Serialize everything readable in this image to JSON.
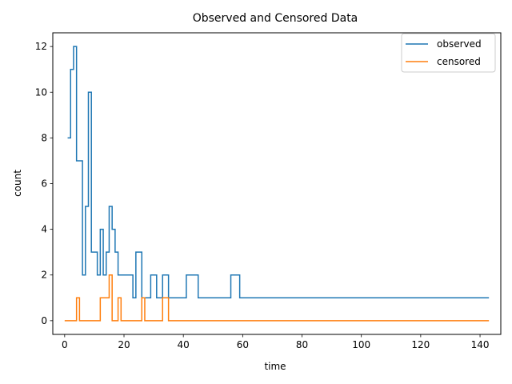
{
  "chart_data": {
    "type": "line",
    "step": "post",
    "title": "Observed and Censored Data",
    "xlabel": "time",
    "ylabel": "count",
    "xlim": [
      -4,
      147
    ],
    "ylim": [
      -0.6,
      12.6
    ],
    "xticks": [
      0,
      20,
      40,
      60,
      80,
      100,
      120,
      140
    ],
    "yticks": [
      0,
      2,
      4,
      6,
      8,
      10,
      12
    ],
    "grid": false,
    "legend_position": "top-right",
    "series": [
      {
        "name": "observed",
        "color": "#1f77b4",
        "points": [
          [
            1,
            8
          ],
          [
            2,
            11
          ],
          [
            3,
            12
          ],
          [
            4,
            7
          ],
          [
            5,
            7
          ],
          [
            6,
            2
          ],
          [
            7,
            5
          ],
          [
            8,
            10
          ],
          [
            9,
            3
          ],
          [
            10,
            3
          ],
          [
            11,
            2
          ],
          [
            12,
            4
          ],
          [
            13,
            2
          ],
          [
            14,
            3
          ],
          [
            15,
            5
          ],
          [
            16,
            4
          ],
          [
            17,
            3
          ],
          [
            18,
            2
          ],
          [
            19,
            2
          ],
          [
            20,
            2
          ],
          [
            21,
            2
          ],
          [
            22,
            2
          ],
          [
            23,
            1
          ],
          [
            24,
            3
          ],
          [
            25,
            3
          ],
          [
            26,
            1
          ],
          [
            27,
            1
          ],
          [
            28,
            1
          ],
          [
            29,
            2
          ],
          [
            30,
            2
          ],
          [
            31,
            1
          ],
          [
            32,
            1
          ],
          [
            33,
            2
          ],
          [
            34,
            2
          ],
          [
            35,
            1
          ],
          [
            36,
            1
          ],
          [
            37,
            1
          ],
          [
            38,
            1
          ],
          [
            39,
            1
          ],
          [
            40,
            1
          ],
          [
            41,
            2
          ],
          [
            42,
            2
          ],
          [
            43,
            2
          ],
          [
            44,
            2
          ],
          [
            45,
            1
          ],
          [
            46,
            1
          ],
          [
            47,
            1
          ],
          [
            48,
            1
          ],
          [
            49,
            1
          ],
          [
            50,
            1
          ],
          [
            51,
            1
          ],
          [
            52,
            1
          ],
          [
            53,
            1
          ],
          [
            54,
            1
          ],
          [
            55,
            1
          ],
          [
            56,
            2
          ],
          [
            57,
            2
          ],
          [
            58,
            2
          ],
          [
            59,
            1
          ],
          [
            60,
            1
          ],
          [
            143,
            1
          ]
        ]
      },
      {
        "name": "censored",
        "color": "#ff7f0e",
        "points": [
          [
            0,
            0
          ],
          [
            4,
            1
          ],
          [
            5,
            0
          ],
          [
            12,
            1
          ],
          [
            15,
            2
          ],
          [
            16,
            0
          ],
          [
            18,
            1
          ],
          [
            19,
            0
          ],
          [
            26,
            1
          ],
          [
            27,
            0
          ],
          [
            33,
            1
          ],
          [
            35,
            0
          ],
          [
            143,
            0
          ]
        ]
      }
    ]
  }
}
